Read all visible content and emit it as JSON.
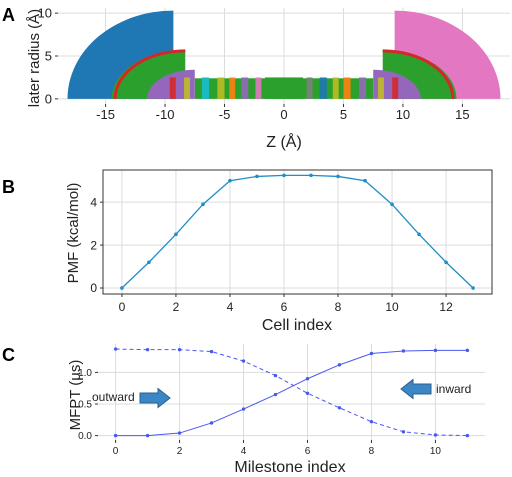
{
  "figure": {
    "panels": [
      {
        "letter": "A",
        "xlabel": "Z (Å)",
        "ylabel": "later radius (Å)",
        "xticks": [
          -15,
          -10,
          -5,
          0,
          5,
          10,
          15
        ],
        "yticks": [
          0,
          5,
          10
        ],
        "xlim": [
          -19,
          19
        ],
        "ylim": [
          -0.6,
          10.6
        ]
      },
      {
        "letter": "B",
        "xlabel": "Cell index",
        "ylabel": "PMF (kcal/mol)",
        "xticks": [
          0,
          2,
          4,
          6,
          8,
          10,
          12
        ],
        "yticks": [
          0,
          2,
          4
        ],
        "xlim": [
          -0.7,
          13.7
        ],
        "ylim": [
          -0.28,
          5.5
        ]
      },
      {
        "letter": "C",
        "xlabel": "Milestone index",
        "ylabel": "MFPT (µs)",
        "xticks": [
          0,
          2,
          4,
          6,
          8,
          10
        ],
        "yticks": [
          "0.0",
          "0.5",
          "1.0"
        ],
        "xlim": [
          -0.55,
          11.55
        ],
        "ylim": [
          -0.07,
          1.45
        ],
        "annotations": {
          "outward": "outward",
          "inward": "inward"
        }
      }
    ]
  },
  "chart_data": [
    {
      "panel": "A",
      "type": "scatter",
      "xlabel": "Z (Å)",
      "ylabel": "later radius (Å)",
      "xlim": [
        -19,
        19
      ],
      "ylim": [
        -0.6,
        10.6
      ],
      "grid": true,
      "colors": [
        "#1f77b4",
        "#e377c2",
        "#2ca02c",
        "#9467bd",
        "#d62728",
        "#ff7f0e",
        "#bcbd22",
        "#17becf",
        "#7f7f7f"
      ],
      "regions": [
        {
          "color": "#1f77b4",
          "z": [
            -18.2,
            -9.3
          ],
          "r_max": 10.3
        },
        {
          "color": "#e377c2",
          "z": [
            9.3,
            18.2
          ],
          "r_max": 10.3
        },
        {
          "color": "#2ca02c",
          "z": [
            -14.5,
            -8.3
          ],
          "r_max": 5.7
        },
        {
          "color": "#2ca02c",
          "z": [
            8.3,
            14.5
          ],
          "r_max": 5.7
        },
        {
          "color": "#9467bd",
          "z": [
            -11.5,
            -7.5
          ],
          "r_max": 3.4
        },
        {
          "color": "#9467bd",
          "z": [
            7.5,
            11.5
          ],
          "r_max": 3.4
        },
        {
          "color": "#2ca02c",
          "z": [
            -7.5,
            7.5
          ],
          "r_max": 2.4
        }
      ]
    },
    {
      "panel": "B",
      "type": "line",
      "xlabel": "Cell index",
      "ylabel": "PMF (kcal/mol)",
      "xlim": [
        -0.7,
        13.7
      ],
      "ylim": [
        -0.28,
        5.5
      ],
      "grid": true,
      "series": [
        {
          "color": "#1f8ec7",
          "x": [
            0,
            1,
            2,
            3,
            4,
            5,
            6,
            7,
            8,
            9,
            10,
            11,
            12,
            13
          ],
          "values": [
            0.0,
            1.2,
            2.5,
            3.9,
            5.0,
            5.2,
            5.25,
            5.25,
            5.2,
            5.0,
            3.9,
            2.5,
            1.2,
            0.0
          ]
        }
      ]
    },
    {
      "panel": "C",
      "type": "line",
      "xlabel": "Milestone index",
      "ylabel": "MFPT (µs)",
      "xlim": [
        -0.55,
        11.55
      ],
      "ylim": [
        -0.07,
        1.45
      ],
      "grid": true,
      "series": [
        {
          "color": "#4a58f0",
          "style": "solid",
          "x": [
            0,
            1,
            2,
            3,
            4,
            5,
            6,
            7,
            8,
            9,
            10,
            11
          ],
          "values": [
            0.0,
            0.0,
            0.04,
            0.2,
            0.42,
            0.65,
            0.9,
            1.12,
            1.3,
            1.34,
            1.35,
            1.35
          ]
        },
        {
          "color": "#4a58f0",
          "style": "dashed",
          "x": [
            0,
            1,
            2,
            3,
            4,
            5,
            6,
            7,
            8,
            9,
            10,
            11
          ],
          "values": [
            1.37,
            1.36,
            1.36,
            1.33,
            1.18,
            0.95,
            0.67,
            0.44,
            0.22,
            0.06,
            0.01,
            0.0
          ]
        }
      ]
    }
  ]
}
